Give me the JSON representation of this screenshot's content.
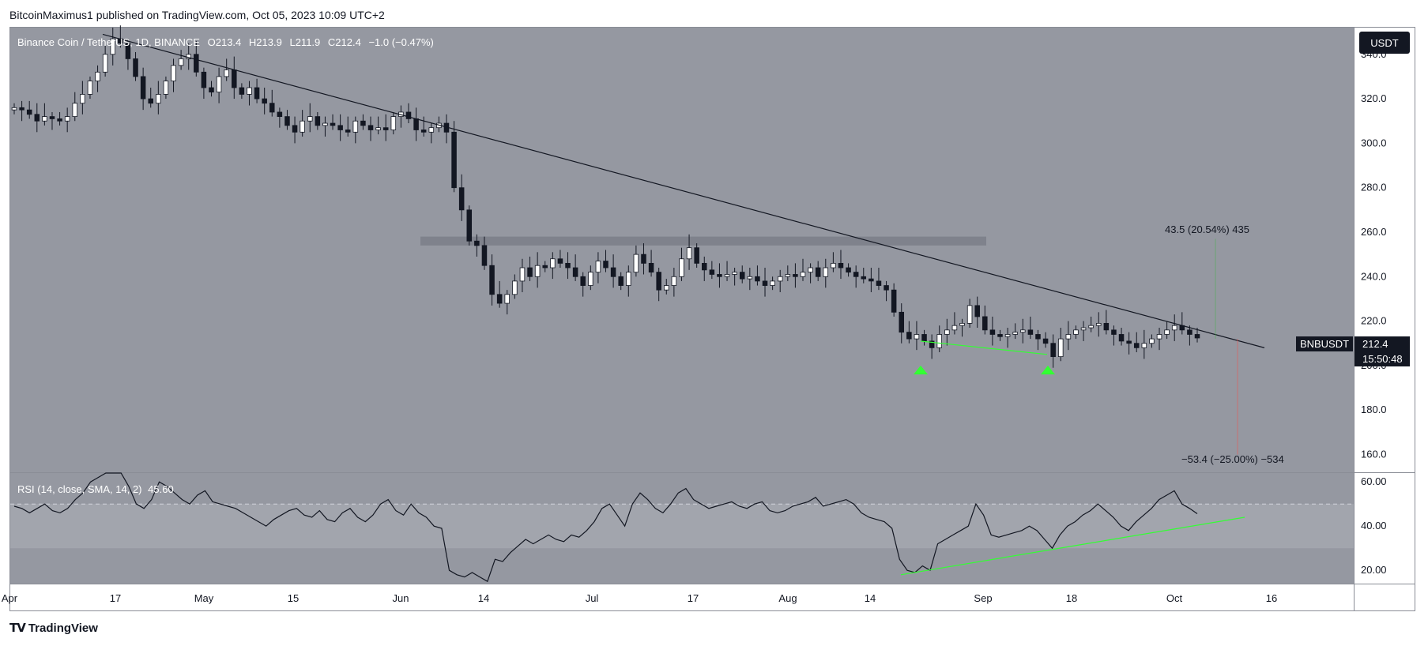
{
  "header": {
    "published_line": "BitcoinMaximus1 published on TradingView.com, Oct 05, 2023 10:09 UTC+2"
  },
  "symbol_legend": {
    "name": "Binance Coin / TetherUS, 1D, BINANCE",
    "o_label": "O",
    "o_value": "213.4",
    "h_label": "H",
    "h_value": "213.9",
    "l_label": "L",
    "l_value": "211.9",
    "c_label": "C",
    "c_value": "212.4",
    "change": "−1.0 (−0.47%)"
  },
  "currency_button": "USDT",
  "price_tag": {
    "symbol": "BNBUSDT",
    "price": "212.4",
    "countdown": "15:50:48"
  },
  "measure_up": "43.5 (20.54%) 435",
  "measure_down": "−53.4 (−25.00%) −534",
  "rsi_legend": {
    "label": "RSI (14, close, SMA, 14, 2)",
    "value": "45.60"
  },
  "footer": {
    "brand": "TradingView"
  },
  "colors": {
    "chart_bg": "#9598a1",
    "rsi_band": "#a3a6ae",
    "resistance": "#787b86",
    "green": "#33ff33",
    "candle_up": "#ffffff",
    "candle_down": "#131722"
  },
  "chart_data": [
    {
      "type": "candlestick",
      "title": "Binance Coin / TetherUS, 1D, BINANCE",
      "yticks": [
        "340.0",
        "320.0",
        "300.0",
        "280.0",
        "260.0",
        "240.0",
        "220.0",
        "200.0",
        "180.0",
        "160.0"
      ],
      "ylim": [
        152,
        352
      ],
      "xticks": [
        "Apr",
        "17",
        "May",
        "15",
        "Jun",
        "14",
        "Jul",
        "17",
        "Aug",
        "14",
        "Sep",
        "18",
        "Oct",
        "16"
      ],
      "close_series": [
        316,
        315,
        313,
        310,
        312,
        311,
        310,
        312,
        318,
        322,
        328,
        332,
        340,
        347,
        345,
        338,
        330,
        320,
        318,
        322,
        328,
        335,
        338,
        340,
        332,
        325,
        323,
        330,
        333,
        325,
        322,
        325,
        320,
        318,
        314,
        312,
        308,
        305,
        310,
        312,
        308,
        309,
        308,
        306,
        305,
        310,
        308,
        306,
        307,
        306,
        312,
        314,
        311,
        306,
        305,
        307,
        309,
        305,
        280,
        270,
        256,
        254,
        245,
        232,
        228,
        232,
        238,
        244,
        240,
        245,
        244,
        248,
        246,
        244,
        240,
        236,
        242,
        247,
        244,
        240,
        236,
        242,
        250,
        246,
        242,
        234,
        236,
        240,
        248,
        253,
        246,
        243,
        241,
        240,
        241,
        242,
        239,
        240,
        238,
        236,
        238,
        240,
        241,
        240,
        242,
        244,
        240,
        244,
        246,
        244,
        242,
        240,
        239,
        238,
        236,
        234,
        224,
        215,
        212,
        214,
        211,
        208,
        214,
        216,
        218,
        219,
        227,
        222,
        216,
        214,
        213,
        214,
        215,
        216,
        214,
        212,
        210,
        204,
        212,
        214,
        216,
        217,
        218,
        219,
        216,
        214,
        211,
        210,
        208,
        210,
        212,
        214,
        216,
        218,
        216,
        214,
        212.4
      ],
      "resistance_zone": [
        254,
        258
      ],
      "descending_trendline": {
        "from": 349,
        "to": 208
      },
      "support_line": [
        211,
        205
      ]
    },
    {
      "type": "line",
      "title": "RSI (14, close, SMA, 14, 2)",
      "yticks": [
        "60.00",
        "40.00",
        "20.00"
      ],
      "ylim": [
        14,
        64
      ],
      "values": [
        49,
        48,
        46,
        48,
        50,
        47,
        46,
        48,
        52,
        55,
        60,
        62,
        68,
        70,
        65,
        58,
        50,
        48,
        52,
        60,
        58,
        55,
        52,
        50,
        54,
        56,
        51,
        50,
        49,
        48,
        46,
        44,
        42,
        40,
        43,
        45,
        47,
        48,
        45,
        44,
        47,
        43,
        42,
        46,
        48,
        44,
        42,
        45,
        50,
        52,
        47,
        45,
        50,
        46,
        44,
        40,
        39,
        20,
        18,
        17,
        19,
        17,
        15,
        25,
        24,
        28,
        31,
        34,
        32,
        34,
        36,
        34,
        33,
        36,
        35,
        38,
        42,
        48,
        50,
        45,
        40,
        50,
        55,
        52,
        48,
        46,
        50,
        55,
        57,
        52,
        50,
        48,
        49,
        50,
        51,
        49,
        48,
        50,
        51,
        47,
        46,
        47,
        49,
        50,
        51,
        53,
        49,
        50,
        51,
        52,
        50,
        46,
        44,
        43,
        42,
        39,
        25,
        20,
        19,
        22,
        20,
        32,
        34,
        36,
        38,
        40,
        50,
        45,
        36,
        35,
        36,
        37,
        38,
        40,
        38,
        34,
        30,
        36,
        40,
        42,
        45,
        47,
        50,
        47,
        44,
        40,
        38,
        42,
        45,
        48,
        52,
        54,
        56,
        50,
        48,
        45.6
      ],
      "trendline": [
        18,
        44
      ],
      "midline": 50,
      "band": [
        30,
        50
      ]
    }
  ]
}
